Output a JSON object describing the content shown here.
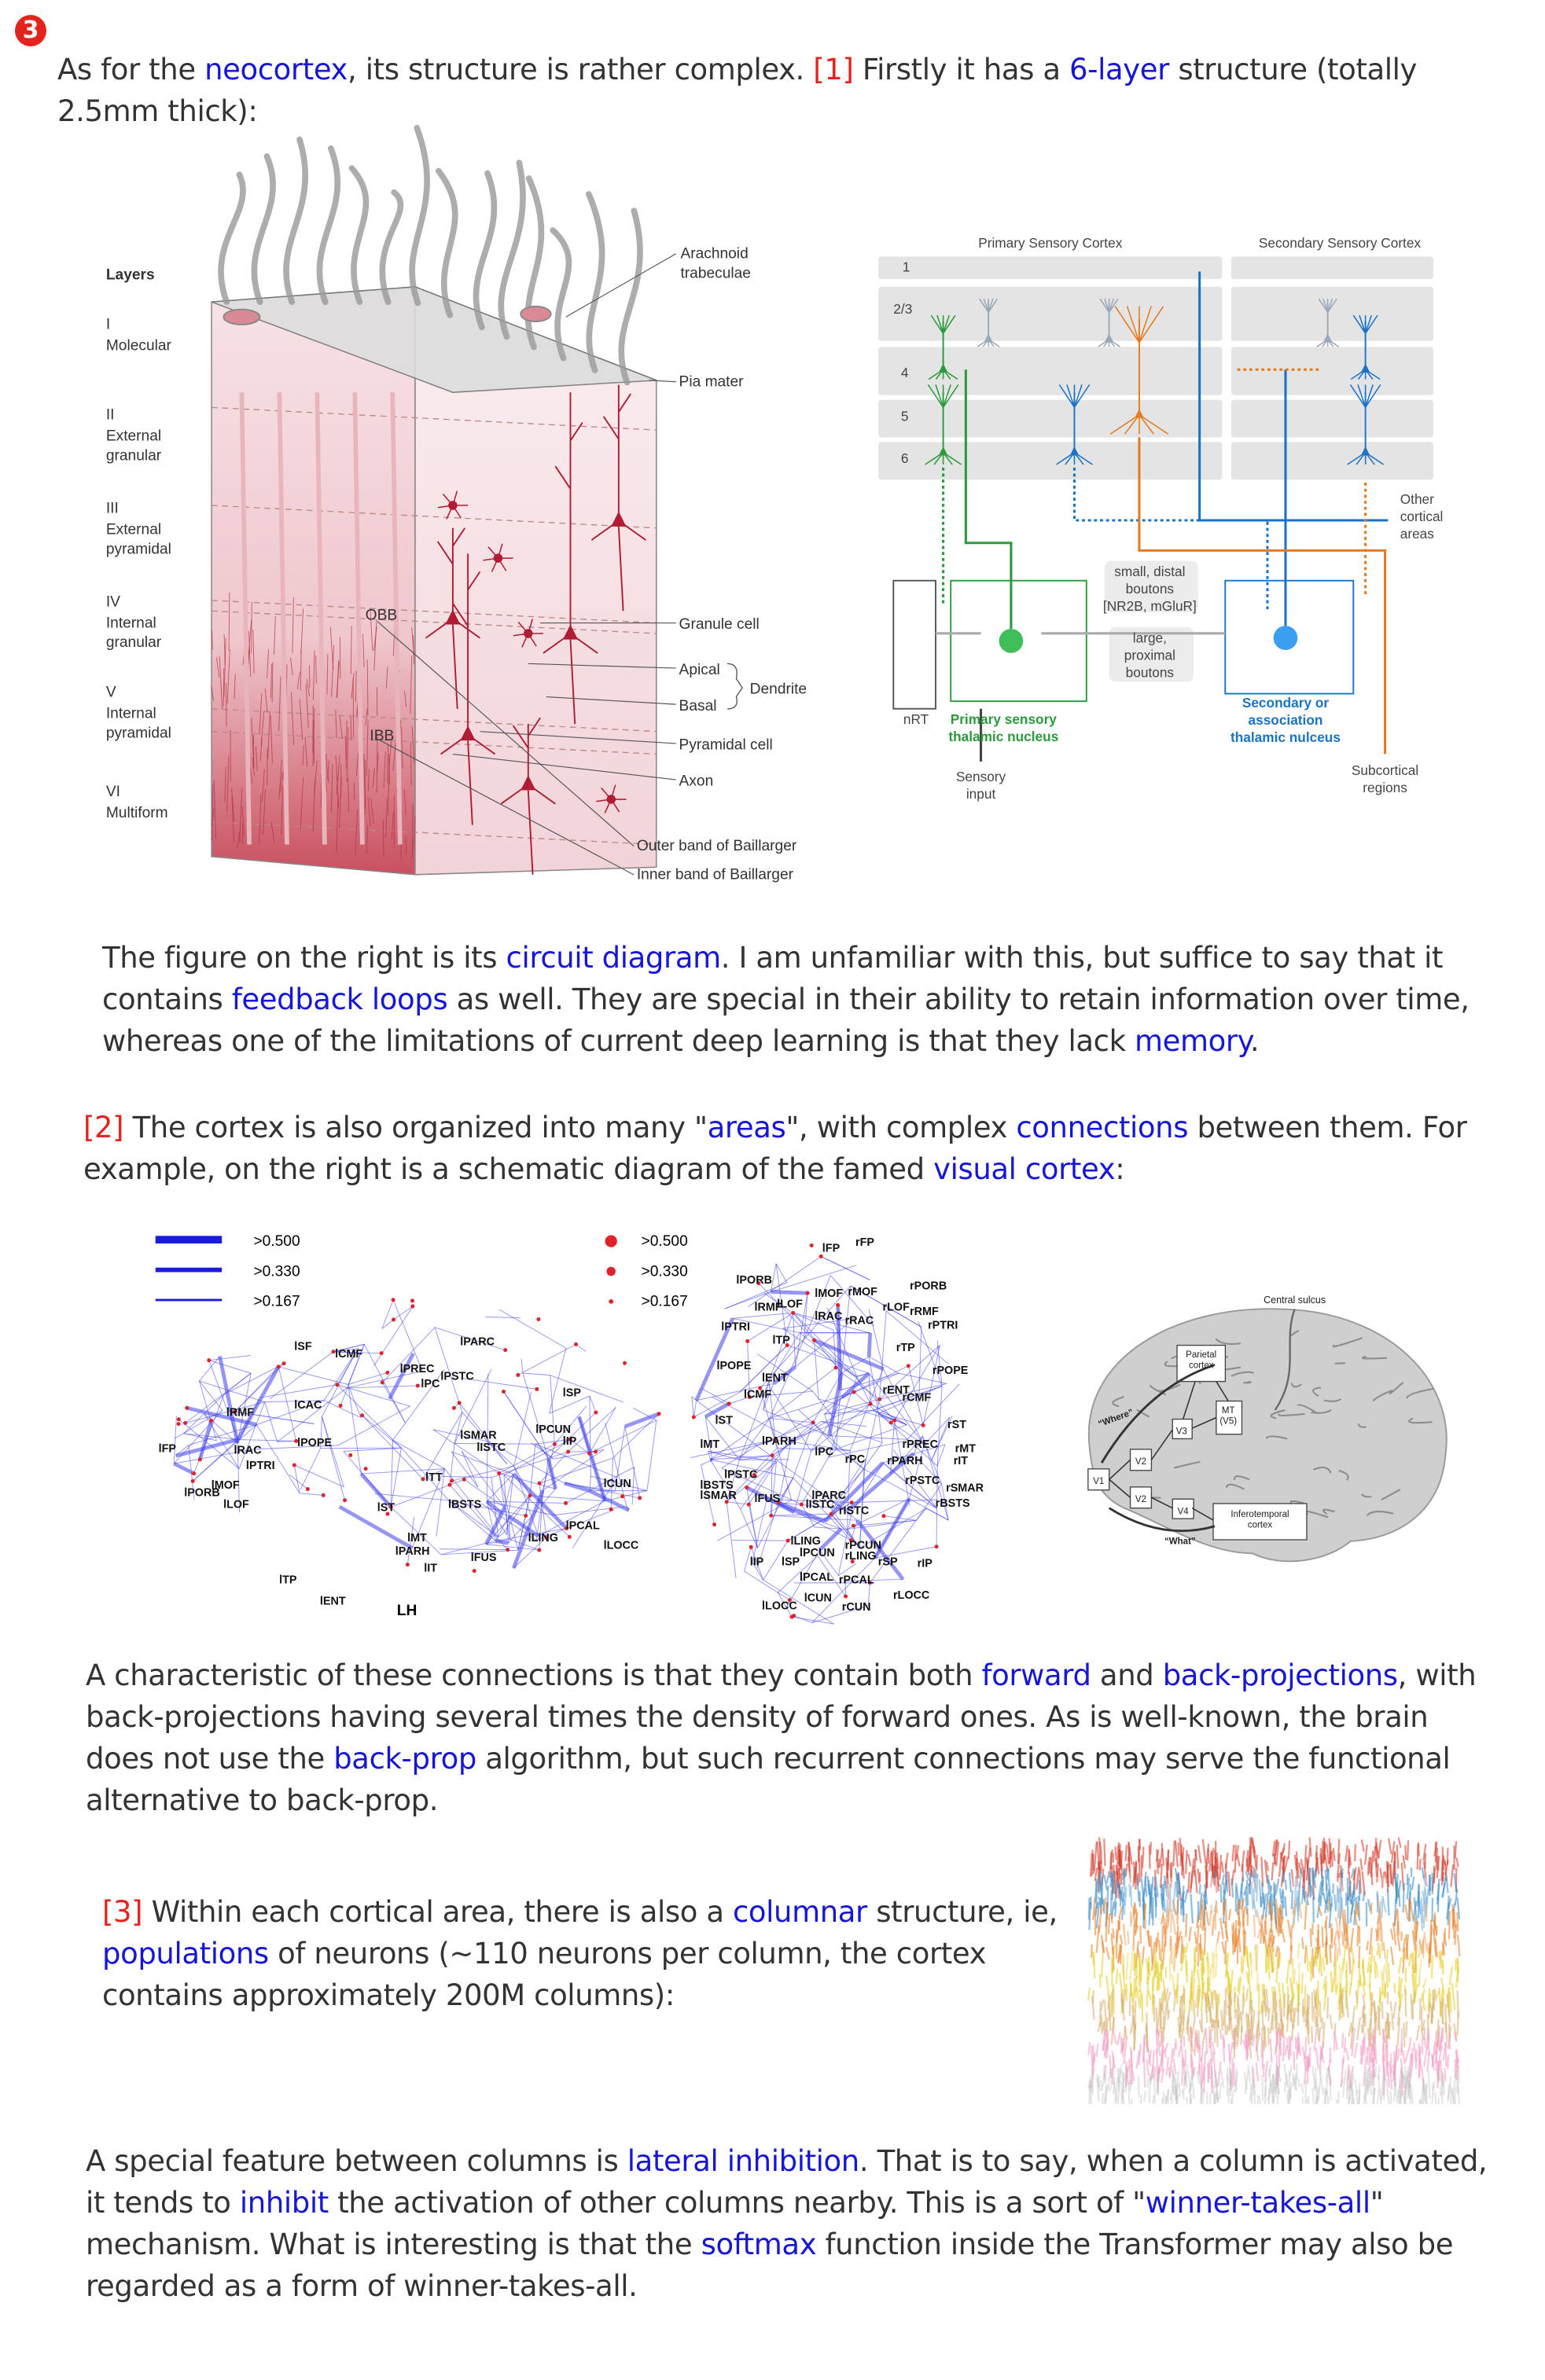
{
  "marker": "3",
  "paragraphs": [
    [
      "As for the ",
      "neocortex",
      ", its structure is rather complex.  ",
      "[1]",
      " Firstly it has a ",
      "6-layer",
      " structure (totally 2.5mm thick):"
    ],
    [
      "The figure on the right is its ",
      "circuit diagram",
      ".  I am unfamiliar with this, but suffice to say that it contains ",
      "feedback loops",
      " as well.  They are special in their ability to retain information over time, whereas one of the limitations of current deep learning is that they lack ",
      "memory",
      "."
    ],
    [
      "[2]",
      " The cortex is also organized into many \"",
      "areas",
      "\", with complex ",
      "connections",
      " between them.  For example, on the right is a schematic diagram of the famed ",
      "visual cortex",
      ":"
    ],
    [
      "A characteristic of these connections is that they contain both ",
      "forward",
      " and ",
      "back-projections",
      ", with back-projections having several times the density of forward ones.  As is well-known, the brain does not use the ",
      "back-prop",
      " algorithm, but such recurrent connections may serve the functional alternative to back-prop."
    ],
    [
      "[3]",
      " Within each cortical area, there is also a ",
      "columnar",
      " structure, ie, ",
      "populations",
      " of neurons (~110 neurons per column, the cortex contains approximately 200M columns):"
    ],
    [
      "A special feature between columns is ",
      "lateral inhibition",
      ".  That is to say, when a column is activated, it tends to ",
      "inhibit",
      " the activation of other columns nearby.  This is a sort of \"",
      "winner-takes-all",
      "\" mechanism.  What is interesting is that the ",
      "softmax",
      " function inside the Transformer may also be regarded as a form of winner-takes-all."
    ]
  ],
  "cortex_figure": {
    "heading": "Layers",
    "layers": [
      {
        "numeral": "I",
        "name": [
          "Molecular"
        ]
      },
      {
        "numeral": "II",
        "name": [
          "External",
          "granular"
        ]
      },
      {
        "numeral": "III",
        "name": [
          "External",
          "pyramidal"
        ]
      },
      {
        "numeral": "IV",
        "name": [
          "Internal",
          "granular"
        ]
      },
      {
        "numeral": "V",
        "name": [
          "Internal",
          "pyramidal"
        ]
      },
      {
        "numeral": "VI",
        "name": [
          "Multiform"
        ]
      }
    ],
    "labels": [
      [
        "Arachnoid",
        "trabeculae"
      ],
      [
        "Pia mater"
      ],
      [
        "Granule cell"
      ],
      [
        "Apical"
      ],
      [
        "Basal"
      ],
      [
        "Dendrite"
      ],
      [
        "Pyramidal cell"
      ],
      [
        "Axon"
      ],
      [
        "Outer band of Baillarger"
      ],
      [
        "Inner band of Baillarger"
      ],
      [
        "OBB"
      ],
      [
        "IBB"
      ]
    ]
  },
  "circuit_figure": {
    "labels": [
      [
        "Primary Sensory Cortex"
      ],
      [
        "Secondary Sensory Cortex"
      ],
      [
        "1"
      ],
      [
        "2/3"
      ],
      [
        "4"
      ],
      [
        "5"
      ],
      [
        "6"
      ],
      [
        "Other",
        "cortical",
        "areas"
      ],
      [
        "small, distal",
        "boutons",
        "[NR2B, mGluR]"
      ],
      [
        "large,",
        "proximal",
        "boutons"
      ],
      [
        "nRT"
      ],
      [
        "Primary sensory",
        "thalamic nucleus"
      ],
      [
        "Secondary or",
        "association",
        "thalamic nulceus"
      ],
      [
        "Sensory",
        "input"
      ],
      [
        "Subcortical",
        "regions"
      ]
    ]
  },
  "network_figure": {
    "edge_legend": [
      ">0.500",
      ">0.330",
      ">0.167"
    ],
    "node_legend": [
      ">0.500",
      ">0.330",
      ">0.167"
    ],
    "hemisphere": "LH",
    "lateral_regions": [
      "lFP",
      "lPORB",
      "lMOF",
      "lLOF",
      "lRMF",
      "lRAC",
      "lPTRI",
      "lPOPE",
      "lCAC",
      "lCMF",
      "lSF",
      "lPREC",
      "lPC",
      "lPSTC",
      "lPARC",
      "lSP",
      "lSMAR",
      "lISTC",
      "lPCUN",
      "lIP",
      "lTT",
      "lST",
      "lBSTS",
      "lCUN",
      "lPCAL",
      "lLING",
      "lLOCC",
      "lMT",
      "lPARH",
      "lIT",
      "lFUS",
      "lTP",
      "lENT"
    ],
    "dorsal_regions": [
      "lFP",
      "rFP",
      "lPORB",
      "rPORB",
      "lMOF",
      "rMOF",
      "lRMF",
      "lLOF",
      "rLOF",
      "lRAC",
      "rRAC",
      "rRMF",
      "lPTRI",
      "rPTRI",
      "lTP",
      "rTP",
      "lPOPE",
      "rPOPE",
      "lENT",
      "rENT",
      "lCMF",
      "rCMF",
      "lST",
      "rST",
      "lPARH",
      "lPC",
      "rPC",
      "rPREC",
      "rPARH",
      "lMT",
      "rMT",
      "rIT",
      "lPSTC",
      "rPSTC",
      "lBSTS",
      "rSMAR",
      "lSMAR",
      "rBSTS",
      "lFUS",
      "lPARC",
      "lISTC",
      "rISTC",
      "lLING",
      "rPCUN",
      "lPCUN",
      "rLING",
      "lIP",
      "lSP",
      "rSP",
      "rIP",
      "lPCAL",
      "rPCAL",
      "lCUN",
      "rLOCC",
      "lLOCC",
      "rCUN"
    ]
  },
  "visual_figure": {
    "labels": [
      [
        "Central sulcus"
      ],
      [
        "Parietal",
        "cortex"
      ],
      [
        "MT",
        "(V5)"
      ],
      [
        "V3"
      ],
      [
        "V2"
      ],
      [
        "V1"
      ],
      [
        "V2"
      ],
      [
        "V4"
      ],
      [
        "Inferotemporal",
        "cortex"
      ],
      [
        "“Where”"
      ],
      [
        "“What”"
      ]
    ]
  }
}
